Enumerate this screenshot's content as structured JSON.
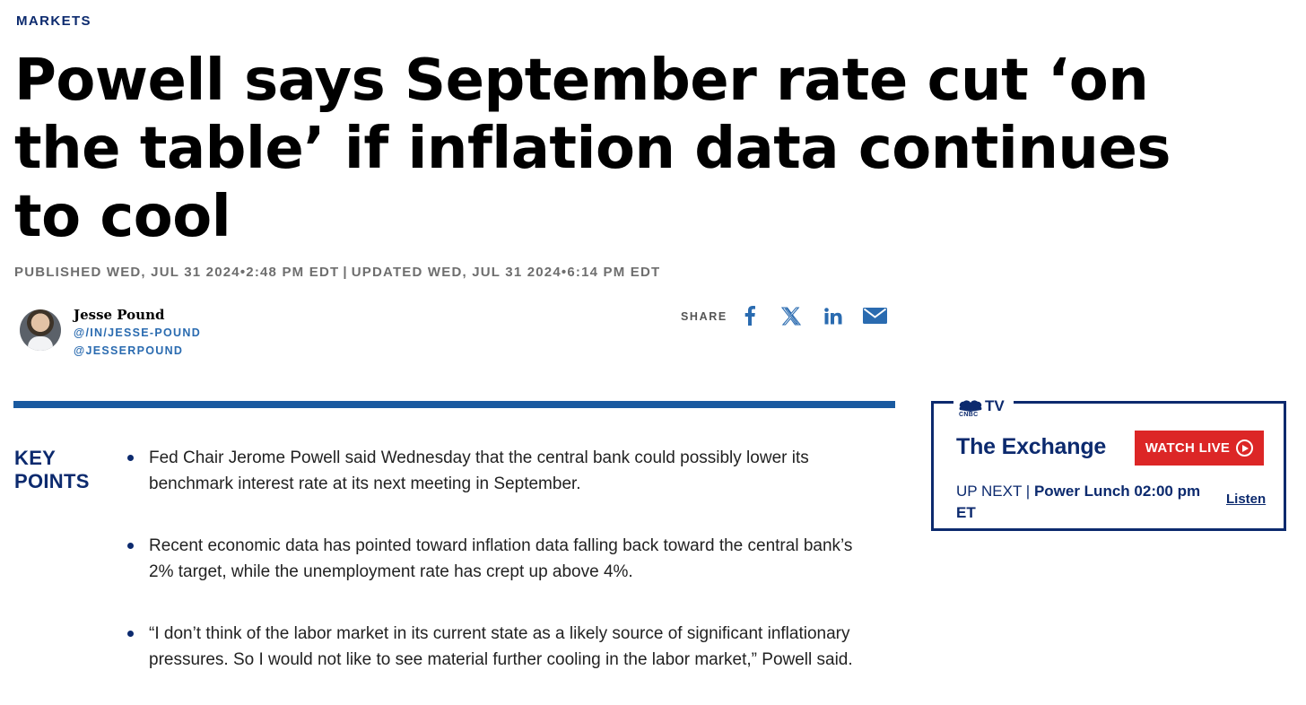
{
  "section": {
    "label": "MARKETS"
  },
  "article": {
    "headline": "Powell says September rate cut ‘on the table’ if inflation data continues to cool",
    "published": "PUBLISHED WED, JUL 31 2024•2:48 PM EDT",
    "separator": "|",
    "updated": "UPDATED WED, JUL 31 2024•6:14 PM EDT"
  },
  "author": {
    "name": "Jesse Pound",
    "linkedin": "@/IN/JESSE-POUND",
    "twitter": "@JESSERPOUND"
  },
  "share": {
    "label": "SHARE",
    "icons": [
      "facebook-icon",
      "x-icon",
      "linkedin-icon",
      "email-icon"
    ],
    "icon_color": "#2a6bb0"
  },
  "key_points": {
    "title_line1": "KEY",
    "title_line2": "POINTS",
    "items": [
      "Fed Chair Jerome Powell said Wednesday that the central bank could possibly lower its benchmark interest rate at its next meeting in September.",
      "Recent economic data has pointed toward inflation data falling back toward the central bank’s 2% target, while the unemployment rate has crept up above 4%.",
      "“I don’t think of the labor market in its current state as a likely source of significant inflationary pressures. So I would not like to see material further cooling in the labor market,” Powell said."
    ]
  },
  "tv_widget": {
    "brand_small": "CNBC",
    "brand_tv": "TV",
    "show_name": "The Exchange",
    "watch_label": "WATCH LIVE",
    "up_next_label": "UP NEXT |",
    "up_next_show": "Power Lunch",
    "up_next_time": "02:00 pm ET",
    "listen_label": "Listen"
  },
  "colors": {
    "navy": "#0c2a6e",
    "accent_blue": "#1a5aa0",
    "link_blue": "#2a6bb0",
    "live_red": "#dc2626",
    "meta_gray": "#6e6e6e"
  }
}
